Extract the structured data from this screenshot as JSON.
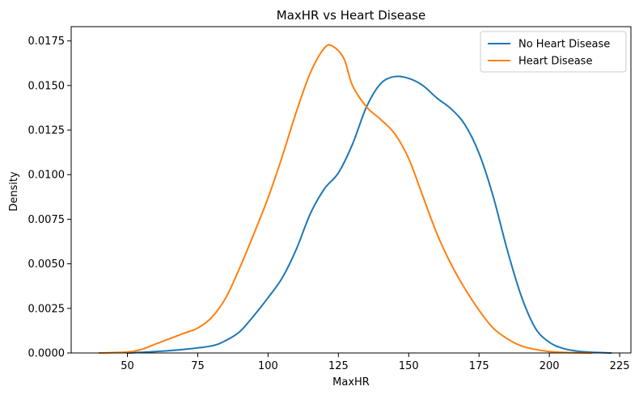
{
  "chart_data": {
    "type": "line",
    "title": "MaxHR vs Heart Disease",
    "xlabel": "MaxHR",
    "ylabel": "Density",
    "xlim": [
      30,
      229
    ],
    "ylim": [
      0,
      0.0183
    ],
    "xticks": [
      50,
      75,
      100,
      125,
      150,
      175,
      200,
      225
    ],
    "yticks": [
      0,
      0.0025,
      0.005,
      0.0075,
      0.01,
      0.0125,
      0.015,
      0.0175
    ],
    "ytick_labels": [
      "0.0000",
      "0.0025",
      "0.0050",
      "0.0075",
      "0.0100",
      "0.0125",
      "0.0150",
      "0.0175"
    ],
    "legend_position": "top-right",
    "grid": false,
    "series": [
      {
        "name": "No Heart Disease",
        "color": "#1f77b4",
        "x": [
          50,
          60,
          70,
          80,
          85,
          90,
          95,
          100,
          105,
          110,
          115,
          120,
          125,
          130,
          135,
          140,
          145,
          150,
          155,
          160,
          165,
          170,
          175,
          180,
          185,
          190,
          195,
          200,
          205,
          210,
          215,
          222
        ],
        "y": [
          0.0,
          8e-05,
          0.0002,
          0.0004,
          0.0007,
          0.0012,
          0.0021,
          0.0031,
          0.0042,
          0.0058,
          0.0078,
          0.0092,
          0.0101,
          0.0117,
          0.0138,
          0.0151,
          0.0155,
          0.0154,
          0.015,
          0.0143,
          0.0137,
          0.0128,
          0.0112,
          0.0088,
          0.0058,
          0.0032,
          0.0014,
          0.0006,
          0.00025,
          0.0001,
          4e-05,
          0.0
        ]
      },
      {
        "name": "Heart Disease",
        "color": "#ff7f0e",
        "x": [
          40,
          50,
          55,
          60,
          65,
          70,
          75,
          80,
          85,
          90,
          95,
          100,
          105,
          110,
          115,
          120,
          123,
          127,
          130,
          135,
          140,
          145,
          150,
          155,
          160,
          165,
          170,
          175,
          180,
          185,
          190,
          195,
          200,
          205,
          210,
          215
        ],
        "y": [
          0.0,
          5e-05,
          0.0002,
          0.0005,
          0.0008,
          0.0011,
          0.0014,
          0.002,
          0.0031,
          0.0048,
          0.0067,
          0.0087,
          0.011,
          0.0135,
          0.0157,
          0.0171,
          0.0172,
          0.0165,
          0.015,
          0.0138,
          0.0131,
          0.0123,
          0.0109,
          0.0088,
          0.0067,
          0.005,
          0.0036,
          0.0024,
          0.0014,
          0.0008,
          0.0004,
          0.0002,
          8e-05,
          3e-05,
          1e-05,
          0.0
        ]
      }
    ]
  }
}
